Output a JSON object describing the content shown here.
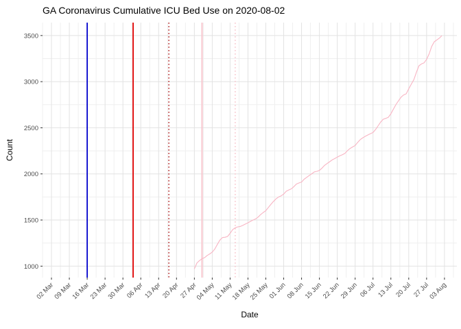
{
  "title": "GA Coronavirus Cumulative ICU Bed Use on 2020-08-02",
  "colors": {
    "background": "#ffffff",
    "title_text": "#000000",
    "axis_text": "#4d4d4d",
    "axis_tick": "#333333",
    "grid_major": "#e2e2e2",
    "grid_minor": "#efefef",
    "series_pink": "#f8b4c3",
    "vline_blue": "#0000cc",
    "vline_red": "#e00000",
    "vline_darkred": "#b02020",
    "vline_pink": "#f8c6ce"
  },
  "chart_data": {
    "type": "line",
    "title": "GA Coronavirus Cumulative ICU Bed Use on 2020-08-02",
    "xlabel": "Date",
    "ylabel": "Count",
    "legend": "none",
    "grid": "major+minor",
    "x_start_date": "2020-03-02",
    "x_end_date": "2020-08-03",
    "x_tick_interval_days": 7,
    "x_tick_labels": [
      "02 Mar",
      "09 Mar",
      "16 Mar",
      "23 Mar",
      "30 Mar",
      "06 Apr",
      "13 Apr",
      "20 Apr",
      "27 Apr",
      "04 May",
      "11 May",
      "18 May",
      "25 May",
      "01 Jun",
      "08 Jun",
      "15 Jun",
      "22 Jun",
      "29 Jun",
      "06 Jul",
      "13 Jul",
      "20 Jul",
      "27 Jul",
      "03 Aug"
    ],
    "y_ticks": [
      1000,
      1500,
      2000,
      2500,
      3000,
      3500
    ],
    "y_minor_ticks": [
      1250,
      1750,
      2250,
      2750,
      3250
    ],
    "ylim": [
      1000,
      3500
    ],
    "vlines": [
      {
        "date": "2020-03-16",
        "style": "solid",
        "color_key": "vline_blue",
        "width": 1.8
      },
      {
        "date": "2020-04-03",
        "style": "solid",
        "color_key": "vline_red",
        "width": 1.8
      },
      {
        "date": "2020-04-17",
        "style": "dotted",
        "color_key": "vline_darkred",
        "width": 1.5
      },
      {
        "date": "2020-04-30",
        "style": "solid",
        "color_key": "vline_pink",
        "width": 2.0
      },
      {
        "date": "2020-05-13",
        "style": "dotted",
        "color_key": "vline_pink",
        "width": 1.6
      }
    ],
    "series": [
      {
        "name": "cumulative-icu-bed-use",
        "color_key": "series_pink",
        "start_date": "2020-04-27",
        "daily_values": [
          970,
          1035,
          1060,
          1080,
          1092,
          1115,
          1132,
          1152,
          1185,
          1235,
          1282,
          1310,
          1313,
          1322,
          1356,
          1395,
          1416,
          1426,
          1430,
          1442,
          1456,
          1470,
          1486,
          1500,
          1512,
          1532,
          1560,
          1582,
          1602,
          1636,
          1670,
          1702,
          1730,
          1750,
          1762,
          1782,
          1812,
          1826,
          1838,
          1862,
          1890,
          1902,
          1912,
          1942,
          1962,
          1982,
          2002,
          2022,
          2028,
          2038,
          2062,
          2092,
          2112,
          2132,
          2152,
          2166,
          2182,
          2196,
          2208,
          2222,
          2252,
          2276,
          2292,
          2308,
          2342,
          2372,
          2392,
          2408,
          2422,
          2436,
          2448,
          2482,
          2522,
          2562,
          2592,
          2602,
          2614,
          2652,
          2702,
          2752,
          2792,
          2832,
          2856,
          2868,
          2922,
          2972,
          3022,
          3102,
          3172,
          3192,
          3204,
          3242,
          3302,
          3382,
          3432,
          3452,
          3472,
          3500
        ]
      }
    ]
  }
}
